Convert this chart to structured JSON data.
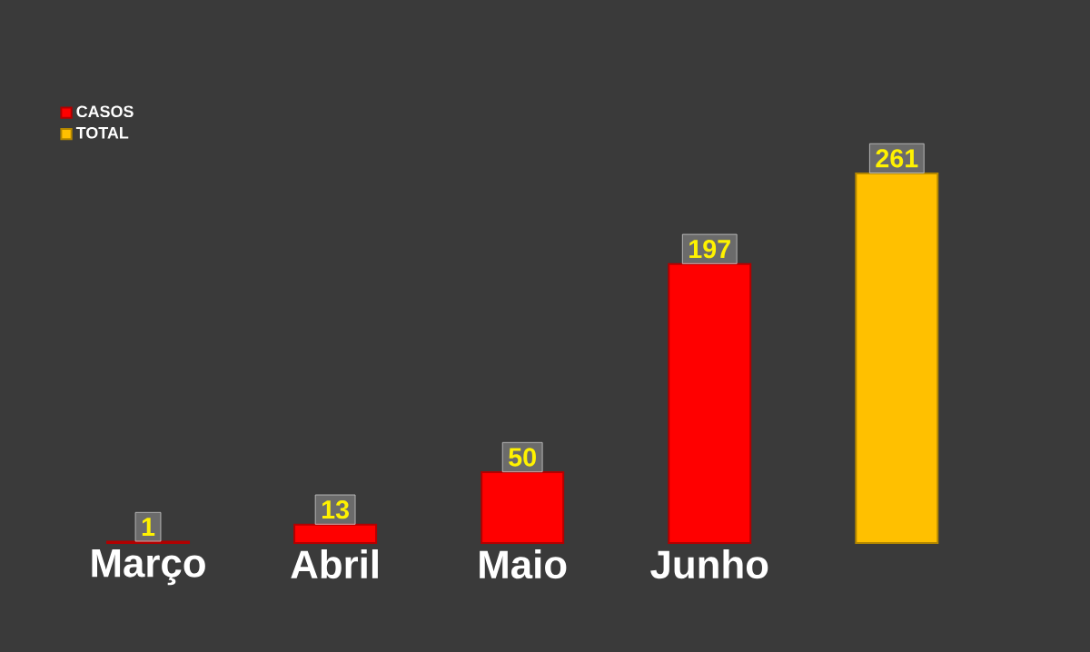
{
  "chart_data": {
    "type": "bar",
    "categories": [
      "Março",
      "Abril",
      "Maio",
      "Junho",
      null
    ],
    "series": [
      {
        "name": "CASOS",
        "color": "#ff0000",
        "values": [
          1,
          13,
          50,
          197,
          null
        ]
      },
      {
        "name": "TOTAL",
        "color": "#ffc000",
        "values": [
          null,
          null,
          null,
          null,
          261
        ]
      }
    ],
    "data_labels": true,
    "legend": "top left"
  }
}
